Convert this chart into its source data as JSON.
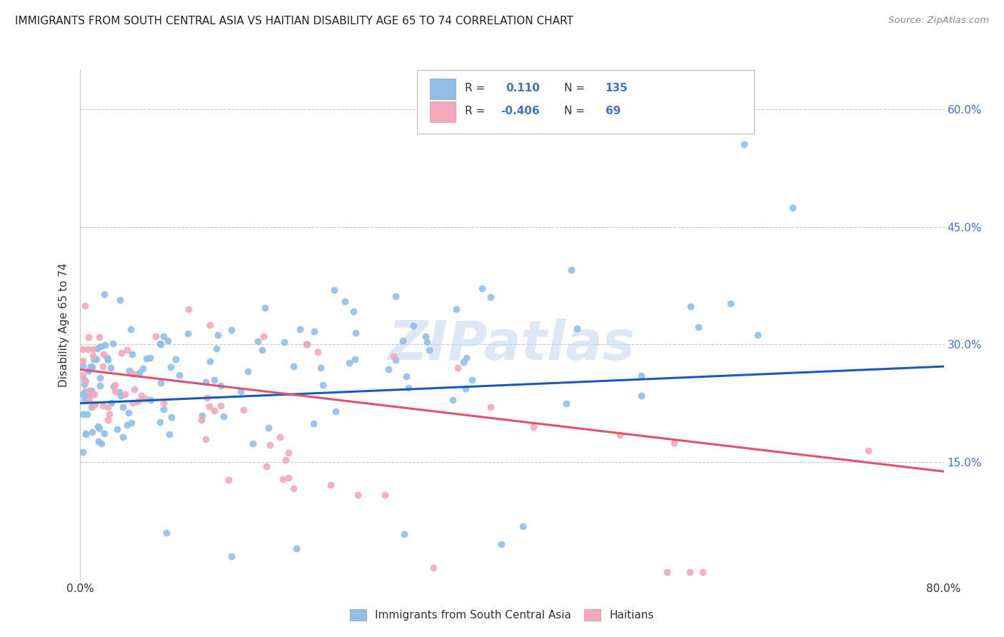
{
  "title": "IMMIGRANTS FROM SOUTH CENTRAL ASIA VS HAITIAN DISABILITY AGE 65 TO 74 CORRELATION CHART",
  "source": "Source: ZipAtlas.com",
  "ylabel": "Disability Age 65 to 74",
  "xlim": [
    0.0,
    0.8
  ],
  "ylim": [
    0.0,
    0.65
  ],
  "yticks_right": [
    0.15,
    0.3,
    0.45,
    0.6
  ],
  "ytick_labels_right": [
    "15.0%",
    "30.0%",
    "45.0%",
    "60.0%"
  ],
  "blue_R": 0.11,
  "blue_N": 135,
  "pink_R": -0.406,
  "pink_N": 69,
  "blue_color": "#92BEE8",
  "pink_color": "#F4A8BB",
  "blue_line_color": "#1A5BB5",
  "pink_line_color": "#E05070",
  "legend_label_blue": "Immigrants from South Central Asia",
  "legend_label_pink": "Haitians",
  "watermark": "ZIPatlas",
  "background_color": "#FFFFFF",
  "grid_color": "#C8C8C8",
  "blue_line_start_y": 0.225,
  "blue_line_end_y": 0.272,
  "pink_line_start_y": 0.268,
  "pink_line_end_y": 0.138
}
